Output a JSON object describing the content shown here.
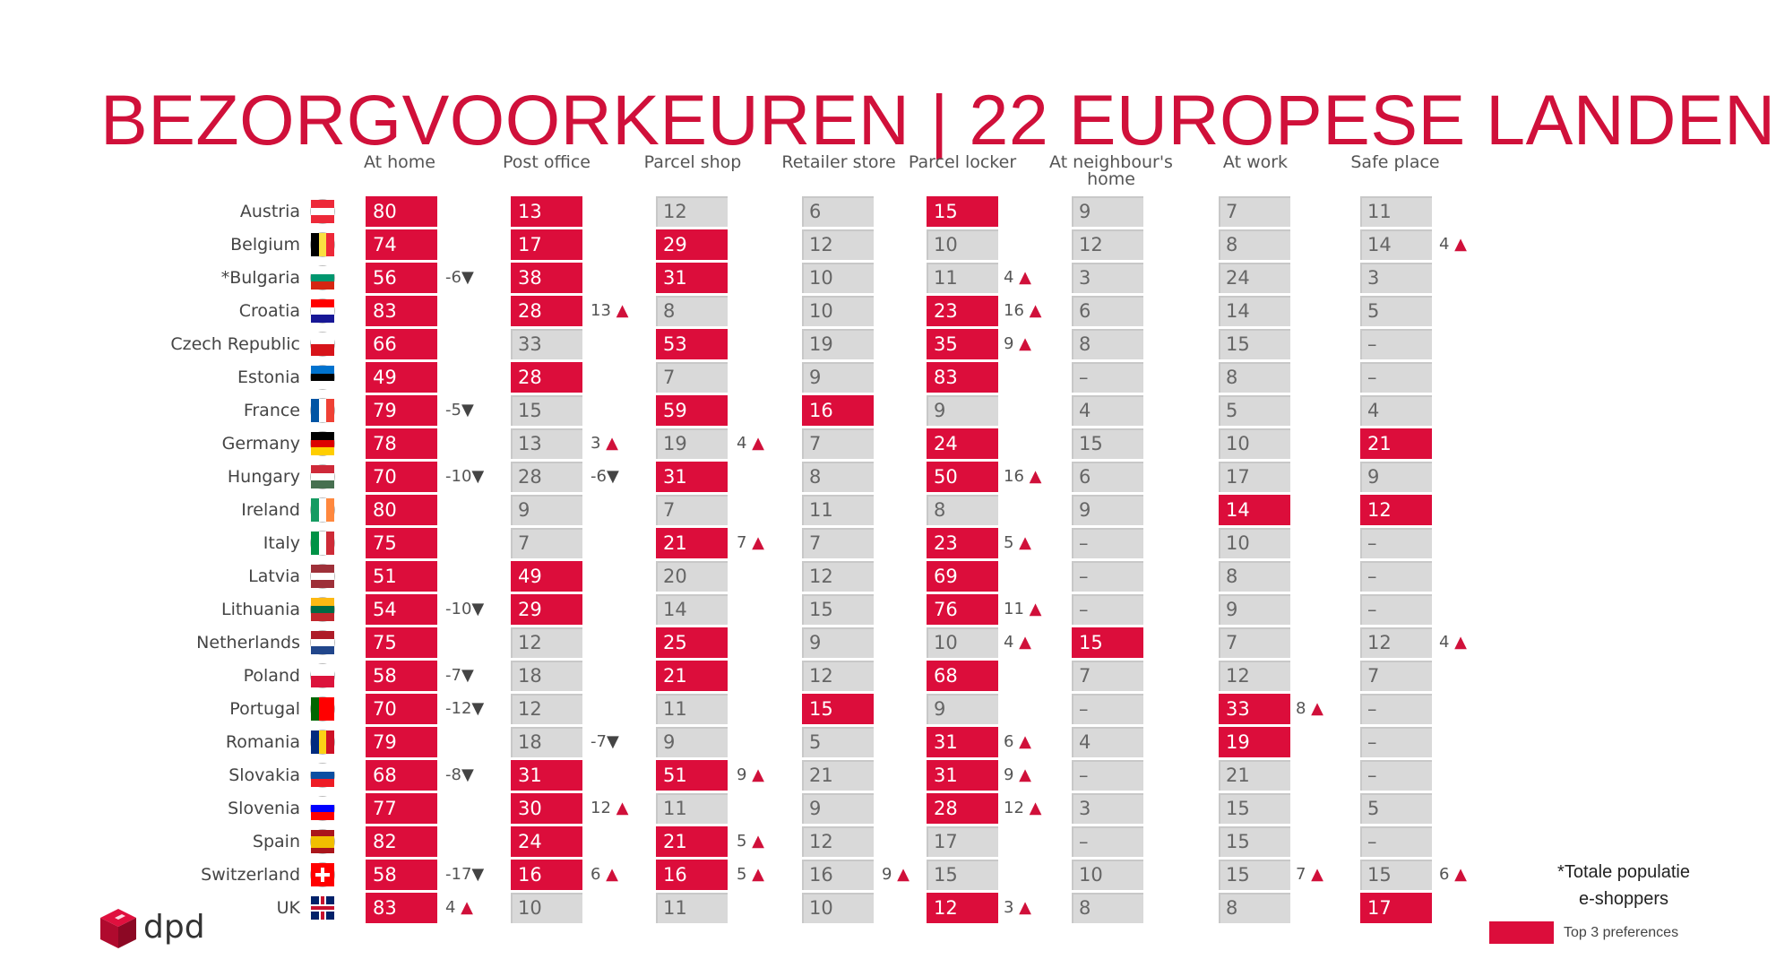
{
  "title": "BEZORGVOORKEUREN | 22 EUROPESE LANDEN",
  "columns": [
    "At home",
    "Post office",
    "Parcel shop",
    "Retailer store",
    "Parcel locker",
    "At neighbour's home",
    "At work",
    "Safe place"
  ],
  "rows": [
    {
      "country": "Austria",
      "flag": "austria-flag-icon",
      "values": [
        "80",
        "13",
        "12",
        "6",
        "15",
        "9",
        "7",
        "11"
      ],
      "top": [
        0,
        1,
        4
      ]
    },
    {
      "country": "Belgium",
      "flag": "belgium-flag-icon",
      "values": [
        "74",
        "17",
        "29",
        "12",
        "10",
        "12",
        "8",
        "14"
      ],
      "top": [
        0,
        1,
        2
      ]
    },
    {
      "country": "*Bulgaria",
      "flag": "bulgaria-flag-icon",
      "values": [
        "56",
        "38",
        "31",
        "10",
        "11",
        "3",
        "24",
        "3"
      ],
      "top": [
        0,
        1,
        2
      ]
    },
    {
      "country": "Croatia",
      "flag": "croatia-flag-icon",
      "values": [
        "83",
        "28",
        "8",
        "10",
        "23",
        "6",
        "14",
        "5"
      ],
      "top": [
        0,
        1,
        4
      ]
    },
    {
      "country": "Czech Republic",
      "flag": "czech-flag-icon",
      "values": [
        "66",
        "33",
        "53",
        "19",
        "35",
        "8",
        "15",
        "–"
      ],
      "top": [
        0,
        2,
        4
      ]
    },
    {
      "country": "Estonia",
      "flag": "estonia-flag-icon",
      "values": [
        "49",
        "28",
        "7",
        "9",
        "83",
        "–",
        "8",
        "–"
      ],
      "top": [
        0,
        1,
        4
      ]
    },
    {
      "country": "France",
      "flag": "france-flag-icon",
      "values": [
        "79",
        "15",
        "59",
        "16",
        "9",
        "4",
        "5",
        "4"
      ],
      "top": [
        0,
        2,
        3
      ]
    },
    {
      "country": "Germany",
      "flag": "germany-flag-icon",
      "values": [
        "78",
        "13",
        "19",
        "7",
        "24",
        "15",
        "10",
        "21"
      ],
      "top": [
        0,
        4,
        7
      ]
    },
    {
      "country": "Hungary",
      "flag": "hungary-flag-icon",
      "values": [
        "70",
        "28",
        "31",
        "8",
        "50",
        "6",
        "17",
        "9"
      ],
      "top": [
        0,
        2,
        4
      ]
    },
    {
      "country": "Ireland",
      "flag": "ireland-flag-icon",
      "values": [
        "80",
        "9",
        "7",
        "11",
        "8",
        "9",
        "14",
        "12"
      ],
      "top": [
        0,
        6,
        7
      ]
    },
    {
      "country": "Italy",
      "flag": "italy-flag-icon",
      "values": [
        "75",
        "7",
        "21",
        "7",
        "23",
        "–",
        "10",
        "–"
      ],
      "top": [
        0,
        2,
        4
      ]
    },
    {
      "country": "Latvia",
      "flag": "latvia-flag-icon",
      "values": [
        "51",
        "49",
        "20",
        "12",
        "69",
        "–",
        "8",
        "–"
      ],
      "top": [
        0,
        1,
        4
      ]
    },
    {
      "country": "Lithuania",
      "flag": "lithuania-flag-icon",
      "values": [
        "54",
        "29",
        "14",
        "15",
        "76",
        "–",
        "9",
        "–"
      ],
      "top": [
        0,
        1,
        4
      ]
    },
    {
      "country": "Netherlands",
      "flag": "netherlands-flag-icon",
      "values": [
        "75",
        "12",
        "25",
        "9",
        "10",
        "15",
        "7",
        "12"
      ],
      "top": [
        0,
        2,
        5
      ]
    },
    {
      "country": "Poland",
      "flag": "poland-flag-icon",
      "values": [
        "58",
        "18",
        "21",
        "12",
        "68",
        "7",
        "12",
        "7"
      ],
      "top": [
        0,
        2,
        4
      ]
    },
    {
      "country": "Portugal",
      "flag": "portugal-flag-icon",
      "values": [
        "70",
        "12",
        "11",
        "15",
        "9",
        "–",
        "33",
        "–"
      ],
      "top": [
        0,
        3,
        6
      ]
    },
    {
      "country": "Romania",
      "flag": "romania-flag-icon",
      "values": [
        "79",
        "18",
        "9",
        "5",
        "31",
        "4",
        "19",
        "–"
      ],
      "top": [
        0,
        4,
        6
      ]
    },
    {
      "country": "Slovakia",
      "flag": "slovakia-flag-icon",
      "values": [
        "68",
        "31",
        "51",
        "21",
        "31",
        "–",
        "21",
        "–"
      ],
      "top": [
        0,
        1,
        2,
        4
      ]
    },
    {
      "country": "Slovenia",
      "flag": "slovenia-flag-icon",
      "values": [
        "77",
        "30",
        "11",
        "9",
        "28",
        "3",
        "15",
        "5"
      ],
      "top": [
        0,
        1,
        4
      ]
    },
    {
      "country": "Spain",
      "flag": "spain-flag-icon",
      "values": [
        "82",
        "24",
        "21",
        "12",
        "17",
        "–",
        "15",
        "–"
      ],
      "top": [
        0,
        1,
        2
      ]
    },
    {
      "country": "Switzerland",
      "flag": "switzerland-flag-icon",
      "values": [
        "58",
        "16",
        "16",
        "16",
        "15",
        "10",
        "15",
        "15"
      ],
      "top": [
        0,
        1,
        2
      ]
    },
    {
      "country": "UK",
      "flag": "uk-flag-icon",
      "values": [
        "83",
        "10",
        "11",
        "10",
        "12",
        "8",
        "8",
        "17"
      ],
      "top": [
        0,
        4,
        7
      ]
    }
  ],
  "annotations": [
    {
      "row": 1,
      "col": 7,
      "text": "4",
      "dir": "up"
    },
    {
      "row": 2,
      "col": 0,
      "text": "-6",
      "dir": "down"
    },
    {
      "row": 2,
      "col": 4,
      "text": "4",
      "dir": "up"
    },
    {
      "row": 3,
      "col": 1,
      "text": "13",
      "dir": "up"
    },
    {
      "row": 3,
      "col": 4,
      "text": "16",
      "dir": "up"
    },
    {
      "row": 4,
      "col": 4,
      "text": "9",
      "dir": "up"
    },
    {
      "row": 6,
      "col": 0,
      "text": "-5",
      "dir": "down"
    },
    {
      "row": 7,
      "col": 1,
      "text": "3",
      "dir": "up"
    },
    {
      "row": 7,
      "col": 2,
      "text": "4",
      "dir": "up"
    },
    {
      "row": 8,
      "col": 0,
      "text": "-10",
      "dir": "down"
    },
    {
      "row": 8,
      "col": 1,
      "text": "-6",
      "dir": "down"
    },
    {
      "row": 8,
      "col": 4,
      "text": "16",
      "dir": "up"
    },
    {
      "row": 10,
      "col": 2,
      "text": "7",
      "dir": "up"
    },
    {
      "row": 10,
      "col": 4,
      "text": "5",
      "dir": "up"
    },
    {
      "row": 12,
      "col": 0,
      "text": "-10",
      "dir": "down"
    },
    {
      "row": 12,
      "col": 4,
      "text": "11",
      "dir": "up"
    },
    {
      "row": 13,
      "col": 4,
      "text": "4",
      "dir": "up"
    },
    {
      "row": 13,
      "col": 7,
      "text": "4",
      "dir": "up"
    },
    {
      "row": 14,
      "col": 0,
      "text": "-7",
      "dir": "down"
    },
    {
      "row": 15,
      "col": 0,
      "text": "-12",
      "dir": "down"
    },
    {
      "row": 15,
      "col": 6,
      "text": "8",
      "dir": "up"
    },
    {
      "row": 16,
      "col": 1,
      "text": "-7",
      "dir": "down"
    },
    {
      "row": 16,
      "col": 4,
      "text": "6",
      "dir": "up"
    },
    {
      "row": 17,
      "col": 0,
      "text": "-8",
      "dir": "down"
    },
    {
      "row": 17,
      "col": 2,
      "text": "9",
      "dir": "up"
    },
    {
      "row": 17,
      "col": 4,
      "text": "9",
      "dir": "up"
    },
    {
      "row": 18,
      "col": 1,
      "text": "12",
      "dir": "up"
    },
    {
      "row": 18,
      "col": 4,
      "text": "12",
      "dir": "up"
    },
    {
      "row": 19,
      "col": 2,
      "text": "5",
      "dir": "up"
    },
    {
      "row": 20,
      "col": 0,
      "text": "-17",
      "dir": "down"
    },
    {
      "row": 20,
      "col": 1,
      "text": "6",
      "dir": "up"
    },
    {
      "row": 20,
      "col": 2,
      "text": "5",
      "dir": "up"
    },
    {
      "row": 20,
      "col": 3,
      "text": "9",
      "dir": "up"
    },
    {
      "row": 20,
      "col": 6,
      "text": "7",
      "dir": "up"
    },
    {
      "row": 20,
      "col": 7,
      "text": "6",
      "dir": "up"
    },
    {
      "row": 21,
      "col": 0,
      "text": "4",
      "dir": "up"
    },
    {
      "row": 21,
      "col": 4,
      "text": "3",
      "dir": "up"
    }
  ],
  "footnote": [
    "*Totale populatie",
    "e-shoppers"
  ],
  "legend": "Top 3 preferences",
  "logo_text": "dpd",
  "colors": {
    "accent": "#dc0d3b",
    "cell": "#d9d9d9"
  }
}
